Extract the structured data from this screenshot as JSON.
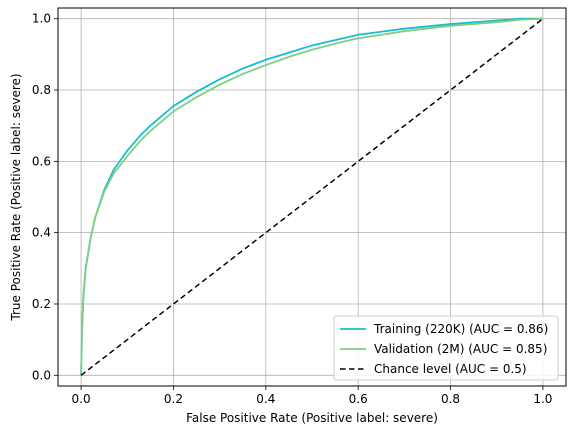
{
  "chart_data": {
    "type": "line",
    "xlabel": "False Positive Rate (Positive label: severe)",
    "ylabel": "True Positive Rate (Positive label: severe)",
    "xlim": [
      -0.05,
      1.05
    ],
    "ylim": [
      -0.03,
      1.03
    ],
    "xticks": [
      0.0,
      0.2,
      0.4,
      0.6,
      0.8,
      1.0
    ],
    "yticks": [
      0.0,
      0.2,
      0.4,
      0.6,
      0.8,
      1.0
    ],
    "xtick_labels": [
      "0.0",
      "0.2",
      "0.4",
      "0.6",
      "0.8",
      "1.0"
    ],
    "ytick_labels": [
      "0.0",
      "0.2",
      "0.4",
      "0.6",
      "0.8",
      "1.0"
    ],
    "grid": true,
    "legend_position": "bottom-right",
    "series": [
      {
        "name": "Training (220K) (AUC = 0.86)",
        "color": "#17becf",
        "style": "solid",
        "x": [
          0.0,
          0.002,
          0.005,
          0.01,
          0.02,
          0.03,
          0.05,
          0.07,
          0.1,
          0.13,
          0.15,
          0.2,
          0.25,
          0.3,
          0.35,
          0.4,
          0.45,
          0.5,
          0.55,
          0.6,
          0.7,
          0.8,
          0.9,
          0.95,
          1.0
        ],
        "y": [
          0.0,
          0.12,
          0.22,
          0.3,
          0.38,
          0.44,
          0.52,
          0.575,
          0.63,
          0.675,
          0.7,
          0.755,
          0.795,
          0.83,
          0.86,
          0.885,
          0.905,
          0.925,
          0.94,
          0.955,
          0.972,
          0.985,
          0.995,
          1.0,
          1.0
        ]
      },
      {
        "name": "Validation (2M) (AUC = 0.85)",
        "color": "#7fcf7f",
        "style": "solid",
        "x": [
          0.0,
          0.002,
          0.005,
          0.01,
          0.02,
          0.03,
          0.05,
          0.07,
          0.1,
          0.13,
          0.15,
          0.2,
          0.25,
          0.3,
          0.35,
          0.4,
          0.45,
          0.5,
          0.55,
          0.6,
          0.7,
          0.8,
          0.9,
          0.95,
          1.0
        ],
        "y": [
          0.0,
          0.13,
          0.23,
          0.3,
          0.38,
          0.44,
          0.515,
          0.565,
          0.615,
          0.66,
          0.685,
          0.74,
          0.78,
          0.815,
          0.845,
          0.87,
          0.893,
          0.913,
          0.93,
          0.945,
          0.965,
          0.98,
          0.99,
          0.997,
          1.0
        ]
      },
      {
        "name": "Chance level (AUC = 0.5)",
        "color": "#000000",
        "style": "dashed",
        "x": [
          0.0,
          1.0
        ],
        "y": [
          0.0,
          1.0
        ]
      }
    ]
  }
}
